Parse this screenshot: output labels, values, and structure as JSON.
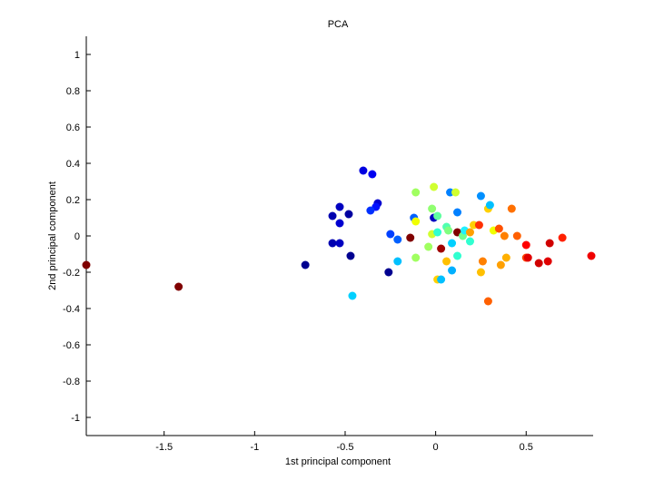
{
  "chart_data": {
    "type": "scatter",
    "title": "PCA",
    "xlabel": "1st principal component",
    "ylabel": "2nd principal component",
    "xlim": [
      -1.93,
      0.87
    ],
    "ylim": [
      -1.1,
      1.1
    ],
    "xticks": [
      {
        "value": -1.5,
        "label": "-1.5"
      },
      {
        "value": -1.0,
        "label": "-1"
      },
      {
        "value": -0.5,
        "label": "-0.5"
      },
      {
        "value": 0.0,
        "label": "0"
      },
      {
        "value": 0.5,
        "label": "0.5"
      }
    ],
    "yticks": [
      {
        "value": 1.0,
        "label": "1"
      },
      {
        "value": 0.8,
        "label": "0.8"
      },
      {
        "value": 0.6,
        "label": "0.6"
      },
      {
        "value": 0.4,
        "label": "0.4"
      },
      {
        "value": 0.2,
        "label": "0.2"
      },
      {
        "value": 0.0,
        "label": "0"
      },
      {
        "value": -0.2,
        "label": "-0.2"
      },
      {
        "value": -0.4,
        "label": "-0.4"
      },
      {
        "value": -0.6,
        "label": "-0.6"
      },
      {
        "value": -0.8,
        "label": "-0.8"
      },
      {
        "value": -1.0,
        "label": "-1"
      }
    ],
    "grid": false,
    "points": [
      {
        "x": -1.93,
        "y": -0.16,
        "color": "#800000"
      },
      {
        "x": -1.42,
        "y": -0.28,
        "color": "#800000"
      },
      {
        "x": -0.72,
        "y": -0.16,
        "color": "#000090"
      },
      {
        "x": -0.57,
        "y": -0.04,
        "color": "#0000b0"
      },
      {
        "x": -0.53,
        "y": -0.04,
        "color": "#0000c0"
      },
      {
        "x": -0.47,
        "y": -0.11,
        "color": "#000090"
      },
      {
        "x": -0.57,
        "y": 0.11,
        "color": "#0000b0"
      },
      {
        "x": -0.53,
        "y": 0.07,
        "color": "#0000d0"
      },
      {
        "x": -0.53,
        "y": 0.16,
        "color": "#0000c0"
      },
      {
        "x": -0.48,
        "y": 0.12,
        "color": "#0000a0"
      },
      {
        "x": -0.4,
        "y": 0.36,
        "color": "#0000e0"
      },
      {
        "x": -0.35,
        "y": 0.34,
        "color": "#0000f0"
      },
      {
        "x": -0.32,
        "y": 0.18,
        "color": "#0000d0"
      },
      {
        "x": -0.33,
        "y": 0.16,
        "color": "#0010ff"
      },
      {
        "x": -0.36,
        "y": 0.14,
        "color": "#0030ff"
      },
      {
        "x": -0.46,
        "y": -0.33,
        "color": "#00d0ff"
      },
      {
        "x": -0.26,
        "y": -0.2,
        "color": "#000090"
      },
      {
        "x": -0.25,
        "y": 0.01,
        "color": "#0040ff"
      },
      {
        "x": -0.21,
        "y": -0.02,
        "color": "#0060ff"
      },
      {
        "x": -0.21,
        "y": -0.14,
        "color": "#00c0ff"
      },
      {
        "x": -0.14,
        "y": -0.01,
        "color": "#800000"
      },
      {
        "x": -0.12,
        "y": 0.1,
        "color": "#0060ff"
      },
      {
        "x": -0.11,
        "y": 0.08,
        "color": "#f0ff00"
      },
      {
        "x": -0.11,
        "y": 0.24,
        "color": "#a0ff60"
      },
      {
        "x": -0.11,
        "y": -0.12,
        "color": "#a0ff60"
      },
      {
        "x": -0.04,
        "y": -0.06,
        "color": "#a0ff60"
      },
      {
        "x": -0.02,
        "y": 0.15,
        "color": "#90ff70"
      },
      {
        "x": -0.02,
        "y": 0.01,
        "color": "#d0ff30"
      },
      {
        "x": -0.01,
        "y": 0.27,
        "color": "#d0ff30"
      },
      {
        "x": -0.01,
        "y": 0.1,
        "color": "#0000c0"
      },
      {
        "x": 0.01,
        "y": 0.11,
        "color": "#60ffa0"
      },
      {
        "x": 0.01,
        "y": 0.02,
        "color": "#30ffd0"
      },
      {
        "x": 0.01,
        "y": -0.24,
        "color": "#ffd000"
      },
      {
        "x": 0.03,
        "y": -0.24,
        "color": "#00c0ff"
      },
      {
        "x": 0.03,
        "y": -0.07,
        "color": "#a00000"
      },
      {
        "x": 0.06,
        "y": 0.05,
        "color": "#50ffb0"
      },
      {
        "x": 0.07,
        "y": 0.03,
        "color": "#80ff80"
      },
      {
        "x": 0.06,
        "y": -0.14,
        "color": "#ffc000"
      },
      {
        "x": 0.08,
        "y": 0.24,
        "color": "#0080ff"
      },
      {
        "x": 0.09,
        "y": -0.04,
        "color": "#00d0ff"
      },
      {
        "x": 0.09,
        "y": -0.19,
        "color": "#00b0ff"
      },
      {
        "x": 0.11,
        "y": 0.24,
        "color": "#d0ff30"
      },
      {
        "x": 0.12,
        "y": 0.13,
        "color": "#0080ff"
      },
      {
        "x": 0.12,
        "y": 0.02,
        "color": "#800000"
      },
      {
        "x": 0.12,
        "y": -0.11,
        "color": "#30ffd0"
      },
      {
        "x": 0.15,
        "y": 0.0,
        "color": "#70ff90"
      },
      {
        "x": 0.16,
        "y": 0.03,
        "color": "#20f0ff"
      },
      {
        "x": 0.19,
        "y": 0.02,
        "color": "#ffa000"
      },
      {
        "x": 0.19,
        "y": -0.03,
        "color": "#30ffd0"
      },
      {
        "x": 0.21,
        "y": 0.06,
        "color": "#ffd000"
      },
      {
        "x": 0.24,
        "y": 0.06,
        "color": "#ff3000"
      },
      {
        "x": 0.25,
        "y": 0.22,
        "color": "#0090ff"
      },
      {
        "x": 0.25,
        "y": -0.2,
        "color": "#ffc000"
      },
      {
        "x": 0.26,
        "y": -0.14,
        "color": "#ff8000"
      },
      {
        "x": 0.29,
        "y": 0.15,
        "color": "#ffd000"
      },
      {
        "x": 0.3,
        "y": 0.17,
        "color": "#00c0ff"
      },
      {
        "x": 0.29,
        "y": -0.36,
        "color": "#ff6000"
      },
      {
        "x": 0.32,
        "y": 0.03,
        "color": "#f0ff00"
      },
      {
        "x": 0.35,
        "y": 0.04,
        "color": "#ff5000"
      },
      {
        "x": 0.36,
        "y": -0.16,
        "color": "#ffa000"
      },
      {
        "x": 0.38,
        "y": 0.0,
        "color": "#ff8000"
      },
      {
        "x": 0.39,
        "y": -0.12,
        "color": "#ffb000"
      },
      {
        "x": 0.42,
        "y": 0.15,
        "color": "#ff7000"
      },
      {
        "x": 0.45,
        "y": 0.0,
        "color": "#ff6000"
      },
      {
        "x": 0.5,
        "y": -0.05,
        "color": "#ff0000"
      },
      {
        "x": 0.5,
        "y": -0.12,
        "color": "#ff4000"
      },
      {
        "x": 0.51,
        "y": -0.12,
        "color": "#e00000"
      },
      {
        "x": 0.57,
        "y": -0.15,
        "color": "#d00000"
      },
      {
        "x": 0.62,
        "y": -0.14,
        "color": "#e00000"
      },
      {
        "x": 0.63,
        "y": -0.04,
        "color": "#d00000"
      },
      {
        "x": 0.7,
        "y": -0.01,
        "color": "#ff2000"
      },
      {
        "x": 0.86,
        "y": -0.11,
        "color": "#f00000"
      }
    ]
  }
}
